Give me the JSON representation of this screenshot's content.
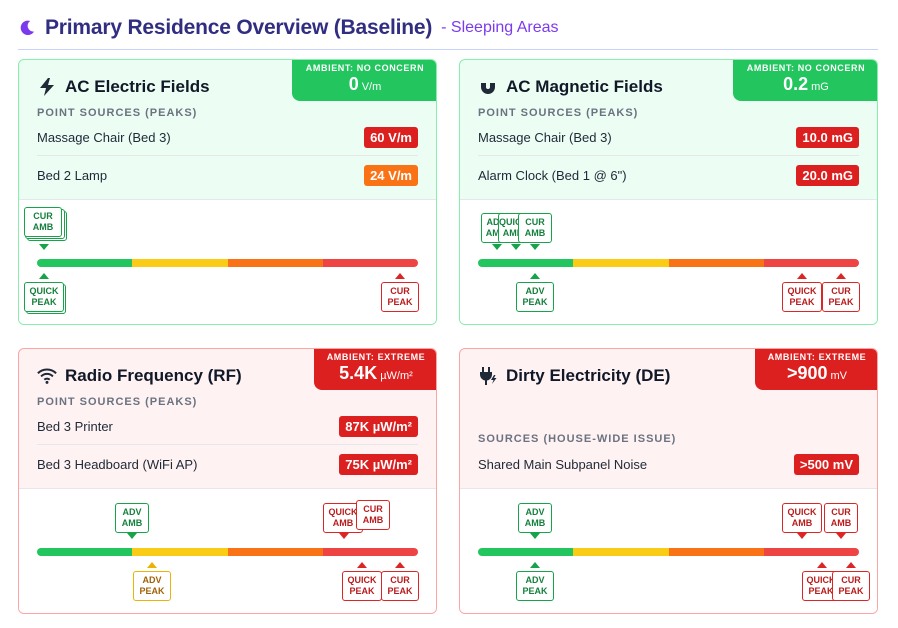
{
  "header": {
    "title": "Primary Residence Overview (Baseline)",
    "subtitle": "- Sleeping Areas",
    "icon": "moon-icon",
    "accent": "#7c3aed"
  },
  "gauge_colors": [
    "#22c55e",
    "#facc15",
    "#f97316",
    "#ef4444"
  ],
  "cards": [
    {
      "title": "AC Electric Fields",
      "icon": "lightning-icon",
      "status": "green",
      "ambient": {
        "label": "AMBIENT: NO CONCERN",
        "value": "0",
        "unit": "V/m"
      },
      "section_label": "POINT SOURCES (PEAKS)",
      "sources": [
        {
          "name": "Massage Chair (Bed 3)",
          "value": "60 V/m",
          "color": "#dc1f1f"
        },
        {
          "name": "Bed 2 Lamp",
          "value": "24 V/m",
          "color": "#f97316"
        }
      ],
      "markers_top": [
        {
          "line1": "CUR",
          "line2": "AMB",
          "color": "green"
        }
      ],
      "markers_bottom": [
        {
          "line1": "QUICK",
          "line2": "PEAK",
          "color": "green"
        },
        {
          "line1": "CUR",
          "line2": "PEAK",
          "color": "red"
        }
      ]
    },
    {
      "title": "AC Magnetic Fields",
      "icon": "magnet-icon",
      "status": "green",
      "ambient": {
        "label": "AMBIENT: NO CONCERN",
        "value": "0.2",
        "unit": "mG"
      },
      "section_label": "POINT SOURCES (PEAKS)",
      "sources": [
        {
          "name": "Massage Chair (Bed 3)",
          "value": "10.0 mG",
          "color": "#dc1f1f"
        },
        {
          "name": "Alarm Clock (Bed 1 @ 6\")",
          "value": "20.0 mG",
          "color": "#dc1f1f"
        }
      ],
      "markers_top": [
        {
          "line1": "ADV",
          "line2": "AMB",
          "color": "green"
        },
        {
          "line1": "QUICK",
          "line2": "AMB",
          "color": "green"
        },
        {
          "line1": "CUR",
          "line2": "AMB",
          "color": "green"
        }
      ],
      "markers_bottom": [
        {
          "line1": "ADV",
          "line2": "PEAK",
          "color": "green"
        },
        {
          "line1": "QUICK",
          "line2": "PEAK",
          "color": "red"
        },
        {
          "line1": "CUR",
          "line2": "PEAK",
          "color": "red"
        }
      ]
    },
    {
      "title": "Radio Frequency (RF)",
      "icon": "wifi-icon",
      "status": "red",
      "ambient": {
        "label": "AMBIENT: EXTREME",
        "value": "5.4K",
        "unit": "µW/m²"
      },
      "section_label": "POINT SOURCES (PEAKS)",
      "sources": [
        {
          "name": "Bed 3 Printer",
          "value": "87K µW/m²",
          "color": "#dc1f1f"
        },
        {
          "name": "Bed 3 Headboard (WiFi AP)",
          "value": "75K µW/m²",
          "color": "#dc1f1f"
        }
      ],
      "markers_top": [
        {
          "line1": "ADV",
          "line2": "AMB",
          "color": "green"
        },
        {
          "line1": "QUICK",
          "line2": "AMB",
          "color": "red"
        },
        {
          "line1": "CUR",
          "line2": "AMB",
          "color": "red"
        }
      ],
      "markers_bottom": [
        {
          "line1": "ADV",
          "line2": "PEAK",
          "color": "yellow"
        },
        {
          "line1": "QUICK",
          "line2": "PEAK",
          "color": "red"
        },
        {
          "line1": "CUR",
          "line2": "PEAK",
          "color": "red"
        }
      ]
    },
    {
      "title": "Dirty Electricity (DE)",
      "icon": "plug-icon",
      "status": "red",
      "ambient": {
        "label": "AMBIENT: EXTREME",
        "value": ">900",
        "unit": "mV"
      },
      "section_label": "SOURCES (HOUSE-WIDE ISSUE)",
      "sources": [
        {
          "name": "Shared Main Subpanel Noise",
          "value": ">500 mV",
          "color": "#dc1f1f"
        }
      ],
      "markers_top": [
        {
          "line1": "ADV",
          "line2": "AMB",
          "color": "green"
        },
        {
          "line1": "QUICK",
          "line2": "AMB",
          "color": "red"
        },
        {
          "line1": "CUR",
          "line2": "AMB",
          "color": "red"
        }
      ],
      "markers_bottom": [
        {
          "line1": "ADV",
          "line2": "PEAK",
          "color": "green"
        },
        {
          "line1": "QUICK",
          "line2": "PEAK",
          "color": "red"
        },
        {
          "line1": "CUR",
          "line2": "PEAK",
          "color": "red"
        }
      ]
    }
  ]
}
